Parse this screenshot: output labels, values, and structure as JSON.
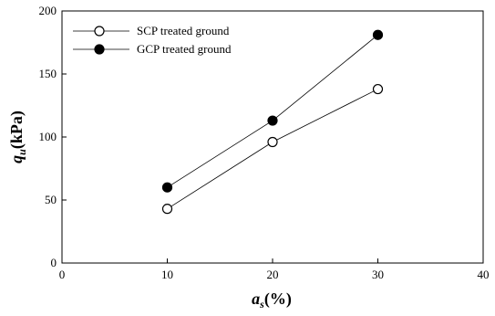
{
  "chart_data": {
    "type": "line",
    "title": "",
    "xlabel_main": "a",
    "xlabel_sub": "s",
    "xlabel_unit": "(%)",
    "ylabel_main": "q",
    "ylabel_sub": "u",
    "ylabel_unit": "(kPa)",
    "xlim": [
      0,
      40
    ],
    "ylim": [
      0,
      200
    ],
    "x_ticks": [
      0,
      10,
      20,
      30,
      40
    ],
    "y_ticks": [
      0,
      50,
      100,
      150,
      200
    ],
    "grid": false,
    "legend_position": "top-left",
    "series": [
      {
        "name": "SCP treated ground",
        "marker": "open-circle",
        "x": [
          10,
          20,
          30
        ],
        "y": [
          43,
          96,
          138
        ]
      },
      {
        "name": "GCP treated ground",
        "marker": "filled-circle",
        "x": [
          10,
          20,
          30
        ],
        "y": [
          60,
          113,
          181
        ]
      }
    ]
  }
}
